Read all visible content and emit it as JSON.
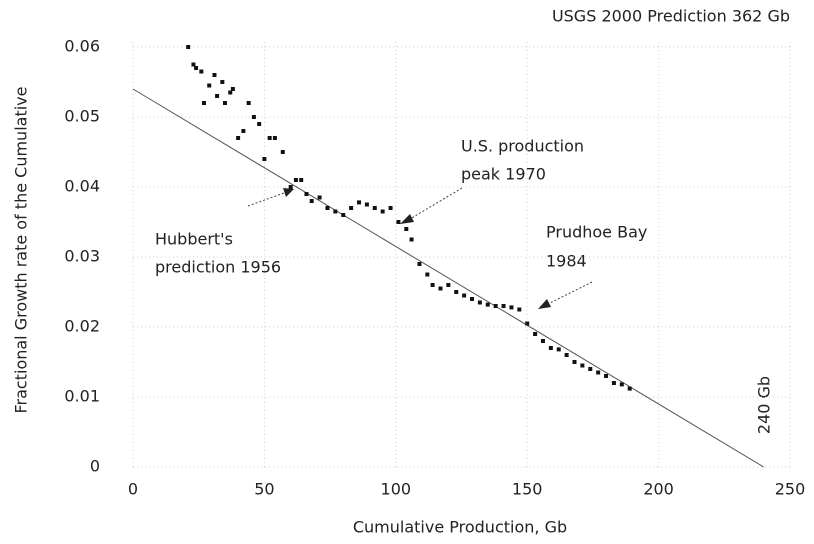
{
  "chart_data": {
    "type": "scatter",
    "title": "USGS 2000 Prediction 362 Gb",
    "x_label": "Cumulative Production, Gb",
    "y_label": "Fractional Growth rate of the Cumulative",
    "xlim": [
      0,
      250
    ],
    "ylim": [
      0,
      0.06
    ],
    "xticks": [
      0,
      50,
      100,
      150,
      200,
      250
    ],
    "yticks": [
      0,
      0.01,
      0.02,
      0.03,
      0.04,
      0.05,
      0.06
    ],
    "grid": true,
    "color": "#111111",
    "points": {
      "x": [
        21,
        23,
        24,
        26,
        27,
        29,
        31,
        32,
        34,
        35,
        37,
        38,
        40,
        42,
        44,
        46,
        48,
        50,
        52,
        54,
        57,
        60,
        62,
        64,
        66,
        68,
        71,
        74,
        77,
        80,
        83,
        86,
        89,
        92,
        95,
        98,
        101,
        104,
        106,
        109,
        112,
        114,
        117,
        120,
        123,
        126,
        129,
        132,
        135,
        138,
        141,
        144,
        147,
        150,
        153,
        156,
        159,
        162,
        165,
        168,
        171,
        174,
        177,
        180,
        183,
        186,
        189
      ],
      "y": [
        0.06,
        0.0575,
        0.057,
        0.0565,
        0.052,
        0.0545,
        0.056,
        0.053,
        0.055,
        0.052,
        0.0535,
        0.054,
        0.047,
        0.048,
        0.052,
        0.05,
        0.049,
        0.044,
        0.047,
        0.047,
        0.045,
        0.04,
        0.041,
        0.041,
        0.039,
        0.038,
        0.0385,
        0.037,
        0.0365,
        0.036,
        0.037,
        0.0378,
        0.0375,
        0.037,
        0.0365,
        0.037,
        0.035,
        0.034,
        0.0325,
        0.029,
        0.0275,
        0.026,
        0.0255,
        0.026,
        0.025,
        0.0245,
        0.024,
        0.0235,
        0.0232,
        0.023,
        0.023,
        0.0228,
        0.0225,
        0.0205,
        0.019,
        0.018,
        0.017,
        0.0168,
        0.016,
        0.015,
        0.0145,
        0.014,
        0.0135,
        0.013,
        0.012,
        0.0118,
        0.0112
      ]
    },
    "fit_line": {
      "x": [
        0,
        240
      ],
      "y": [
        0.054,
        0
      ]
    },
    "annotations": [
      {
        "lines": [
          "U.S. production",
          "peak 1970"
        ]
      },
      {
        "lines": [
          "Hubbert's",
          "prediction 1956"
        ]
      },
      {
        "lines": [
          "Prudhoe Bay",
          "1984"
        ]
      },
      {
        "lines": [
          "240 Gb"
        ]
      }
    ]
  }
}
